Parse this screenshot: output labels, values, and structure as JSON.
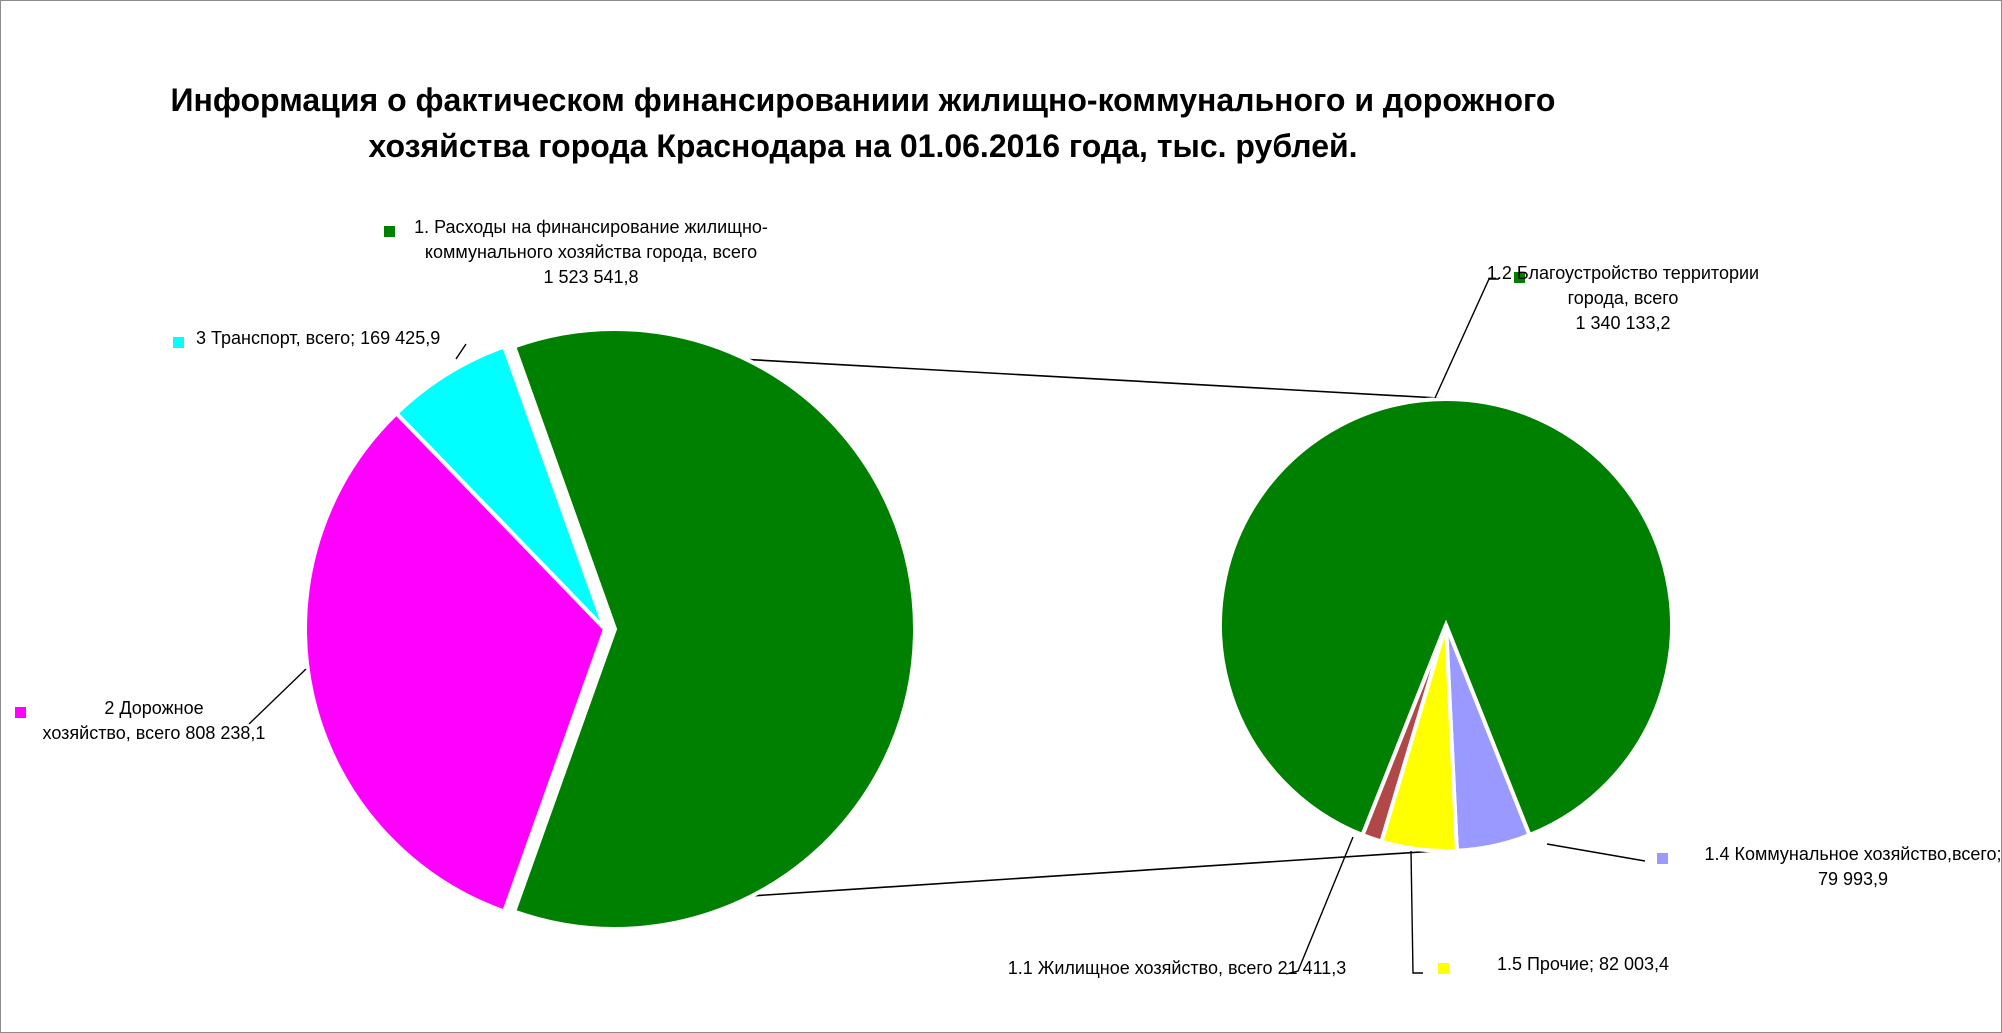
{
  "chart_data": {
    "type": "pie",
    "subtype": "pie-of-pie",
    "title_lines": [
      "Информация о фактическом финансированиии жилищно-коммунального и дорожного",
      "хозяйства города Краснодара на 01.06.2016 года, тыс. рублей."
    ],
    "main_pie": {
      "slices": [
        {
          "key": "zhkh",
          "label_lines": [
            "1. Расходы на финансирование жилищно-",
            "коммунального  хозяйства города, всего",
            "1 523 541,8"
          ],
          "value": 1523541.8,
          "color": "#008000",
          "exploded_to_secondary": true
        },
        {
          "key": "road",
          "label_lines": [
            "2 Дорожное",
            "хозяйство, всего 808 238,1"
          ],
          "value": 808238.1,
          "color": "#ff00ff"
        },
        {
          "key": "transport",
          "label_lines": [
            "3 Транспорт, всего; 169 425,9"
          ],
          "value": 169425.9,
          "color": "#00ffff"
        }
      ]
    },
    "secondary_pie": {
      "parent": "zhkh",
      "slices": [
        {
          "key": "blago",
          "label_lines": [
            "1.2 Благоустройство территории",
            "города, всего",
            "1 340 133,2"
          ],
          "value": 1340133.2,
          "color": "#008000"
        },
        {
          "key": "komm",
          "label_lines": [
            "1.4 Коммунальное хозяйство,всего;",
            "79 993,9"
          ],
          "value": 79993.9,
          "color": "#9999ff"
        },
        {
          "key": "other",
          "label_lines": [
            "1.5 Прочие; 82 003,4"
          ],
          "value": 82003.4,
          "color": "#ffff00"
        },
        {
          "key": "housing",
          "label_lines": [
            "1.1 Жилищное хозяйство, всего 21 411,3"
          ],
          "value": 21411.3,
          "color": "#b04848"
        }
      ]
    },
    "legend": "none"
  }
}
